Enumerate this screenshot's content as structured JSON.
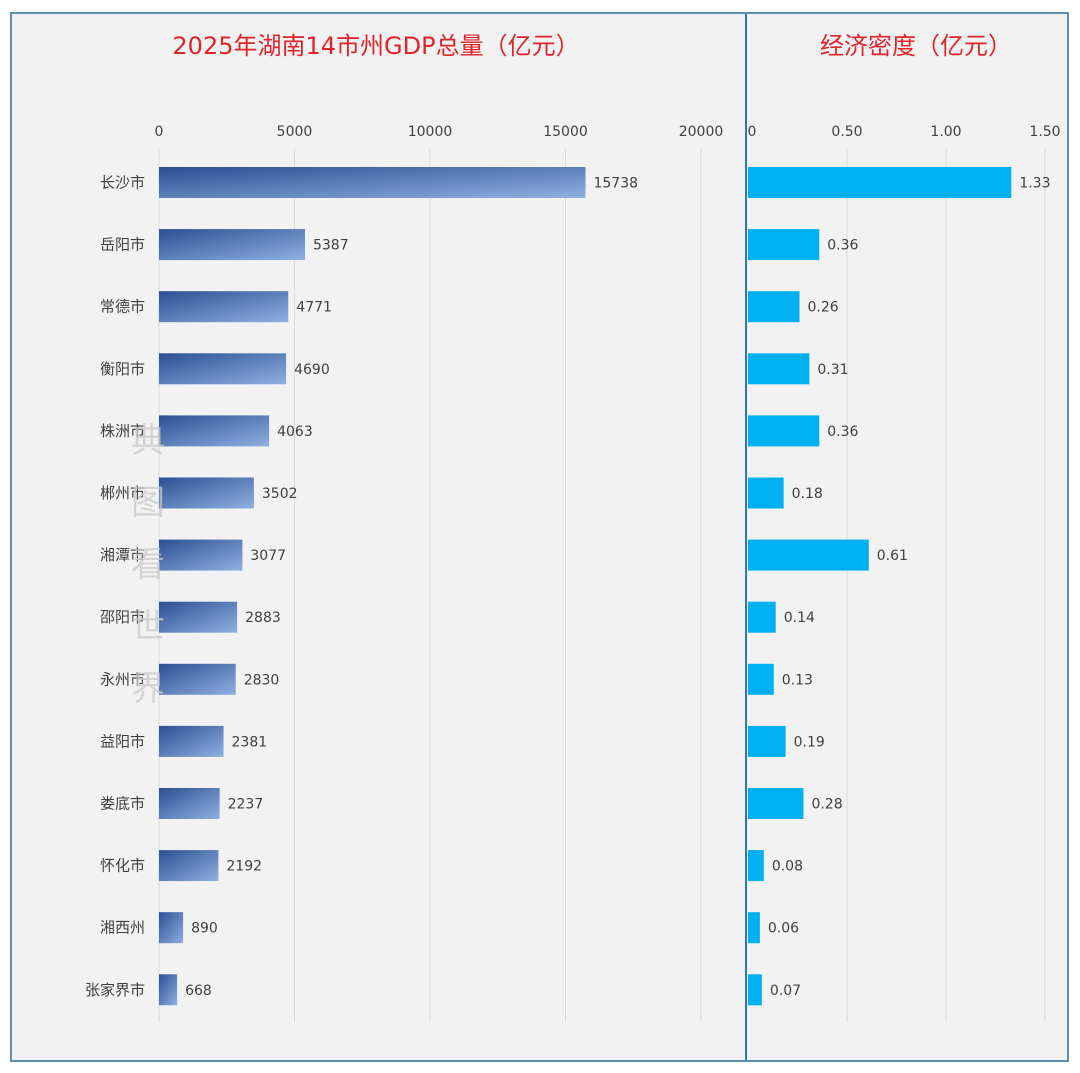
{
  "chart_data": [
    {
      "type": "bar",
      "orientation": "horizontal",
      "title": "2025年湖南14市州GDP总量（亿元）",
      "categories": [
        "长沙市",
        "岳阳市",
        "常德市",
        "衡阳市",
        "株洲市",
        "郴州市",
        "湘潭市",
        "邵阳市",
        "永州市",
        "益阳市",
        "娄底市",
        "怀化市",
        "湘西州",
        "张家界市"
      ],
      "values": [
        15738,
        5387,
        4771,
        4690,
        4063,
        3502,
        3077,
        2883,
        2830,
        2381,
        2237,
        2192,
        890,
        668
      ],
      "value_labels": [
        "15738",
        "5387",
        "4771",
        "4690",
        "4063",
        "3502",
        "3077",
        "2883",
        "2830",
        "2381",
        "2237",
        "2192",
        "890",
        "668"
      ],
      "xlim": [
        0,
        20000
      ],
      "x_ticks": [
        "0",
        "5000",
        "10000",
        "15000",
        "20000"
      ],
      "grid": true,
      "colors": {
        "bar_dark": "#2c4f94",
        "bar_light": "#8fb0e0"
      }
    },
    {
      "type": "bar",
      "orientation": "horizontal",
      "title": "经济密度（亿元）",
      "categories": [
        "长沙市",
        "岳阳市",
        "常德市",
        "衡阳市",
        "株洲市",
        "郴州市",
        "湘潭市",
        "邵阳市",
        "永州市",
        "益阳市",
        "娄底市",
        "怀化市",
        "湘西州",
        "张家界市"
      ],
      "values": [
        1.33,
        0.36,
        0.26,
        0.31,
        0.36,
        0.18,
        0.61,
        0.14,
        0.13,
        0.19,
        0.28,
        0.08,
        0.06,
        0.07
      ],
      "value_labels": [
        "1.33",
        "0.36",
        "0.26",
        "0.31",
        "0.36",
        "0.18",
        "0.61",
        "0.14",
        "0.13",
        "0.19",
        "0.28",
        "0.08",
        "0.06",
        "0.07"
      ],
      "xlim": [
        0,
        1.5
      ],
      "x_ticks": [
        "0",
        "0.50",
        "1.00",
        "1.50"
      ],
      "grid": true,
      "colors": {
        "bar": "#00b0f0"
      }
    }
  ],
  "watermark": [
    "典",
    "图",
    "看",
    "世",
    "界"
  ],
  "colors": {
    "title": "#e0242b",
    "frame": "#5b8fb3",
    "divider": "#2e75b6",
    "grid": "#d9d9d9",
    "background": "#f2f2f2"
  }
}
